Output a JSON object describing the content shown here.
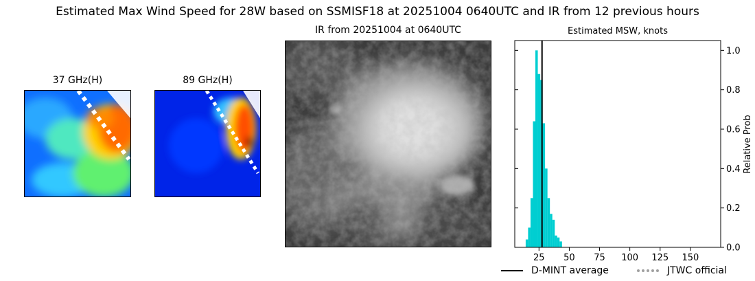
{
  "figure": {
    "title": "Estimated Max Wind Speed for 28W based on SSMISF18 at 20251004 0640UTC and IR from 12 previous hours"
  },
  "panels": {
    "ghz37": {
      "title": "37 GHz(H)"
    },
    "ghz89": {
      "title": "89 GHz(H)"
    },
    "ir": {
      "title": "IR from 20251004 at 0640UTC"
    },
    "hist": {
      "title": "Estimated MSW, knots"
    }
  },
  "chart_data": {
    "type": "bar",
    "title": "Estimated MSW, knots",
    "xlabel": "",
    "ylabel": "Relative Prob",
    "xlim": [
      5,
      175
    ],
    "ylim": [
      0,
      1.05
    ],
    "y_axis_side": "right",
    "grid": false,
    "bar_color": "#00ced1",
    "xticks": [
      25,
      50,
      75,
      100,
      125,
      150
    ],
    "yticks": [
      0.0,
      0.2,
      0.4,
      0.6,
      0.8,
      1.0
    ],
    "bin_width": 2,
    "bins": [
      {
        "x": 15,
        "y": 0.04
      },
      {
        "x": 17,
        "y": 0.1
      },
      {
        "x": 19,
        "y": 0.25
      },
      {
        "x": 21,
        "y": 0.64
      },
      {
        "x": 23,
        "y": 1.0
      },
      {
        "x": 25,
        "y": 0.88
      },
      {
        "x": 27,
        "y": 0.85
      },
      {
        "x": 29,
        "y": 0.63
      },
      {
        "x": 31,
        "y": 0.4
      },
      {
        "x": 33,
        "y": 0.25
      },
      {
        "x": 35,
        "y": 0.17
      },
      {
        "x": 37,
        "y": 0.14
      },
      {
        "x": 39,
        "y": 0.06
      },
      {
        "x": 41,
        "y": 0.05
      },
      {
        "x": 43,
        "y": 0.03
      }
    ],
    "dmint_average": 27.5,
    "legend": {
      "placement": "bottom",
      "entries": [
        {
          "label": "D-MINT average",
          "color": "#000000",
          "style": "solid"
        },
        {
          "label": "JTWC official",
          "color": "#a0a0a0",
          "style": "dotted"
        }
      ]
    }
  }
}
